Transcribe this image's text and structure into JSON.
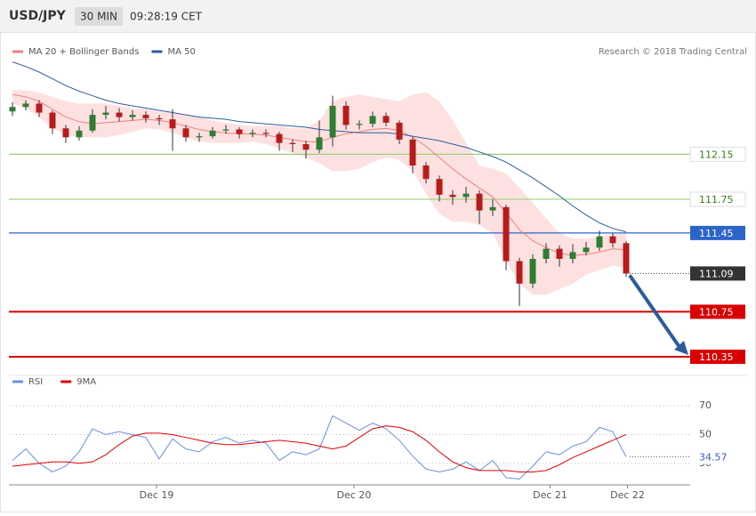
{
  "header": {
    "symbol": "USD/JPY",
    "interval": "30 MIN",
    "time": "09:28:19 CET"
  },
  "credit": "Research © 2018 Trading Central",
  "chart_data": [
    {
      "type": "candlestick",
      "open": [
        112.53,
        112.57,
        112.6,
        112.52,
        112.38,
        112.3,
        112.36,
        112.5,
        112.52,
        112.48,
        112.5,
        112.47,
        112.46,
        112.38,
        112.3,
        112.31,
        112.36,
        112.37,
        112.33,
        112.34,
        112.33,
        112.25,
        112.24,
        112.19,
        112.3,
        112.58,
        112.41,
        112.42,
        112.49,
        112.43,
        112.28,
        112.05,
        111.93,
        111.79,
        111.77,
        111.8,
        111.65,
        111.68,
        111.2,
        111.0,
        111.22,
        111.31,
        111.22,
        111.28,
        111.32,
        111.42,
        111.36
      ],
      "high": [
        112.61,
        112.63,
        112.63,
        112.54,
        112.41,
        112.4,
        112.55,
        112.58,
        112.56,
        112.54,
        112.53,
        112.5,
        112.55,
        112.41,
        112.34,
        112.39,
        112.41,
        112.39,
        112.37,
        112.37,
        112.35,
        112.28,
        112.27,
        112.45,
        112.67,
        112.62,
        112.45,
        112.53,
        112.52,
        112.45,
        112.3,
        112.08,
        111.96,
        111.83,
        111.86,
        111.83,
        111.75,
        111.7,
        111.23,
        111.26,
        111.36,
        111.34,
        111.35,
        111.37,
        111.47,
        111.45,
        111.38
      ],
      "low": [
        112.49,
        112.54,
        112.48,
        112.33,
        112.25,
        112.27,
        112.34,
        112.46,
        112.44,
        112.45,
        112.43,
        112.41,
        112.18,
        112.26,
        112.26,
        112.29,
        112.33,
        112.29,
        112.3,
        112.3,
        112.18,
        112.17,
        112.11,
        112.16,
        112.22,
        112.37,
        112.37,
        112.39,
        112.4,
        112.24,
        111.98,
        111.89,
        111.73,
        111.7,
        111.72,
        111.53,
        111.6,
        111.12,
        110.8,
        110.96,
        111.18,
        111.15,
        111.18,
        111.25,
        111.29,
        111.32,
        111.06
      ],
      "close": [
        112.57,
        112.6,
        112.52,
        112.38,
        112.3,
        112.36,
        112.5,
        112.52,
        112.48,
        112.5,
        112.47,
        112.46,
        112.38,
        112.3,
        112.31,
        112.36,
        112.37,
        112.33,
        112.34,
        112.33,
        112.25,
        112.24,
        112.19,
        112.3,
        112.58,
        112.41,
        112.42,
        112.49,
        112.43,
        112.28,
        112.05,
        111.93,
        111.79,
        111.77,
        111.8,
        111.65,
        111.68,
        111.2,
        111.0,
        111.22,
        111.31,
        111.22,
        111.28,
        111.32,
        111.42,
        111.36,
        111.09
      ],
      "up_color": "#2f7d32",
      "down_color": "#b71c1c",
      "series": [
        {
          "name": "MA 20 + Bollinger Bands",
          "color": "#f08080",
          "band_color": "#fcdada",
          "values": [
            112.68,
            112.66,
            112.62,
            112.55,
            112.48,
            112.44,
            112.42,
            112.43,
            112.44,
            112.45,
            112.46,
            112.45,
            112.43,
            112.4,
            112.37,
            112.35,
            112.34,
            112.33,
            112.33,
            112.32,
            112.3,
            112.28,
            112.26,
            112.26,
            112.3,
            112.33,
            112.35,
            112.37,
            112.38,
            112.36,
            112.3,
            112.22,
            112.12,
            112.02,
            111.93,
            111.85,
            111.77,
            111.63,
            111.48,
            111.38,
            111.32,
            111.27,
            111.25,
            111.26,
            111.28,
            111.31,
            111.3
          ],
          "upper": [
            112.72,
            112.72,
            112.7,
            112.66,
            112.62,
            112.6,
            112.6,
            112.6,
            112.58,
            112.56,
            112.55,
            112.53,
            112.52,
            112.5,
            112.48,
            112.45,
            112.43,
            112.41,
            112.4,
            112.4,
            112.4,
            112.38,
            112.38,
            112.45,
            112.62,
            112.66,
            112.68,
            112.66,
            112.64,
            112.62,
            112.68,
            112.7,
            112.62,
            112.45,
            112.25,
            112.05,
            112.02,
            111.98,
            111.85,
            111.72,
            111.58,
            111.45,
            111.4,
            111.4,
            111.42,
            111.44,
            111.44
          ],
          "lower": [
            112.6,
            112.56,
            112.48,
            112.38,
            112.32,
            112.3,
            112.3,
            112.3,
            112.32,
            112.35,
            112.38,
            112.37,
            112.34,
            112.3,
            112.26,
            112.25,
            112.25,
            112.25,
            112.26,
            112.24,
            112.2,
            112.16,
            112.12,
            112.07,
            112.0,
            112.0,
            112.02,
            112.08,
            112.12,
            112.1,
            112.0,
            111.8,
            111.62,
            111.55,
            111.55,
            111.52,
            111.45,
            111.2,
            111.0,
            110.9,
            110.9,
            110.95,
            111.0,
            111.08,
            111.12,
            111.16,
            111.14
          ]
        },
        {
          "name": "MA 50",
          "color": "#2e5c9a",
          "values": [
            112.97,
            112.93,
            112.88,
            112.82,
            112.76,
            112.71,
            112.67,
            112.63,
            112.6,
            112.58,
            112.56,
            112.54,
            112.52,
            112.5,
            112.48,
            112.47,
            112.46,
            112.44,
            112.43,
            112.42,
            112.41,
            112.4,
            112.39,
            112.37,
            112.36,
            112.35,
            112.34,
            112.34,
            112.34,
            112.33,
            112.31,
            112.29,
            112.27,
            112.24,
            112.21,
            112.17,
            112.13,
            112.08,
            112.01,
            111.94,
            111.86,
            111.78,
            111.69,
            111.61,
            111.54,
            111.49,
            111.46
          ]
        }
      ],
      "levels": [
        {
          "value": 112.15,
          "color": "#9ccf75",
          "text_color": "#3d7d1a",
          "boxed": false
        },
        {
          "value": 111.75,
          "color": "#9ccf75",
          "text_color": "#3d7d1a",
          "boxed": false
        },
        {
          "value": 111.45,
          "color": "#2d64c8",
          "text_color": "#ffffff",
          "boxed": true
        },
        {
          "value": 110.75,
          "color": "#d80000",
          "text_color": "#ffffff",
          "boxed": true
        },
        {
          "value": 110.35,
          "color": "#d80000",
          "text_color": "#ffffff",
          "boxed": true
        }
      ],
      "last": {
        "value": 111.09,
        "color": "#333333"
      },
      "ylim": [
        110.2,
        113.22
      ]
    },
    {
      "type": "line",
      "series": [
        {
          "name": "RSI",
          "color": "#6a8fe0",
          "values": [
            32,
            40,
            30,
            24,
            28,
            38,
            54,
            50,
            52,
            50,
            48,
            33,
            47,
            40,
            38,
            45,
            48,
            44,
            46,
            44,
            32,
            38,
            36,
            40,
            63,
            58,
            53,
            58,
            54,
            46,
            35,
            26,
            24,
            26,
            31,
            25,
            32,
            20,
            19,
            28,
            38,
            36,
            42,
            45,
            55,
            52,
            34.57
          ]
        },
        {
          "name": "9MA",
          "color": "#e00000",
          "values": [
            28,
            29,
            30,
            31,
            31,
            30,
            31,
            36,
            43,
            49,
            51,
            51,
            50,
            48,
            46,
            44,
            43,
            43,
            44,
            45,
            46,
            45,
            44,
            42,
            40,
            42,
            48,
            54,
            56,
            55,
            52,
            46,
            38,
            31,
            27,
            25,
            25,
            25,
            24,
            24,
            25,
            29,
            34,
            38,
            42,
            46,
            50
          ]
        }
      ],
      "ylim": [
        15,
        80
      ],
      "yticks": [
        70,
        50,
        30
      ],
      "grid": true,
      "xticks": [
        {
          "value": 10.8,
          "label": "Dec 19"
        },
        {
          "value": 25.6,
          "label": "Dec 20"
        },
        {
          "value": 40.3,
          "label": "Dec 21"
        },
        {
          "value": 46.1,
          "label": "Dec 22"
        }
      ]
    }
  ]
}
